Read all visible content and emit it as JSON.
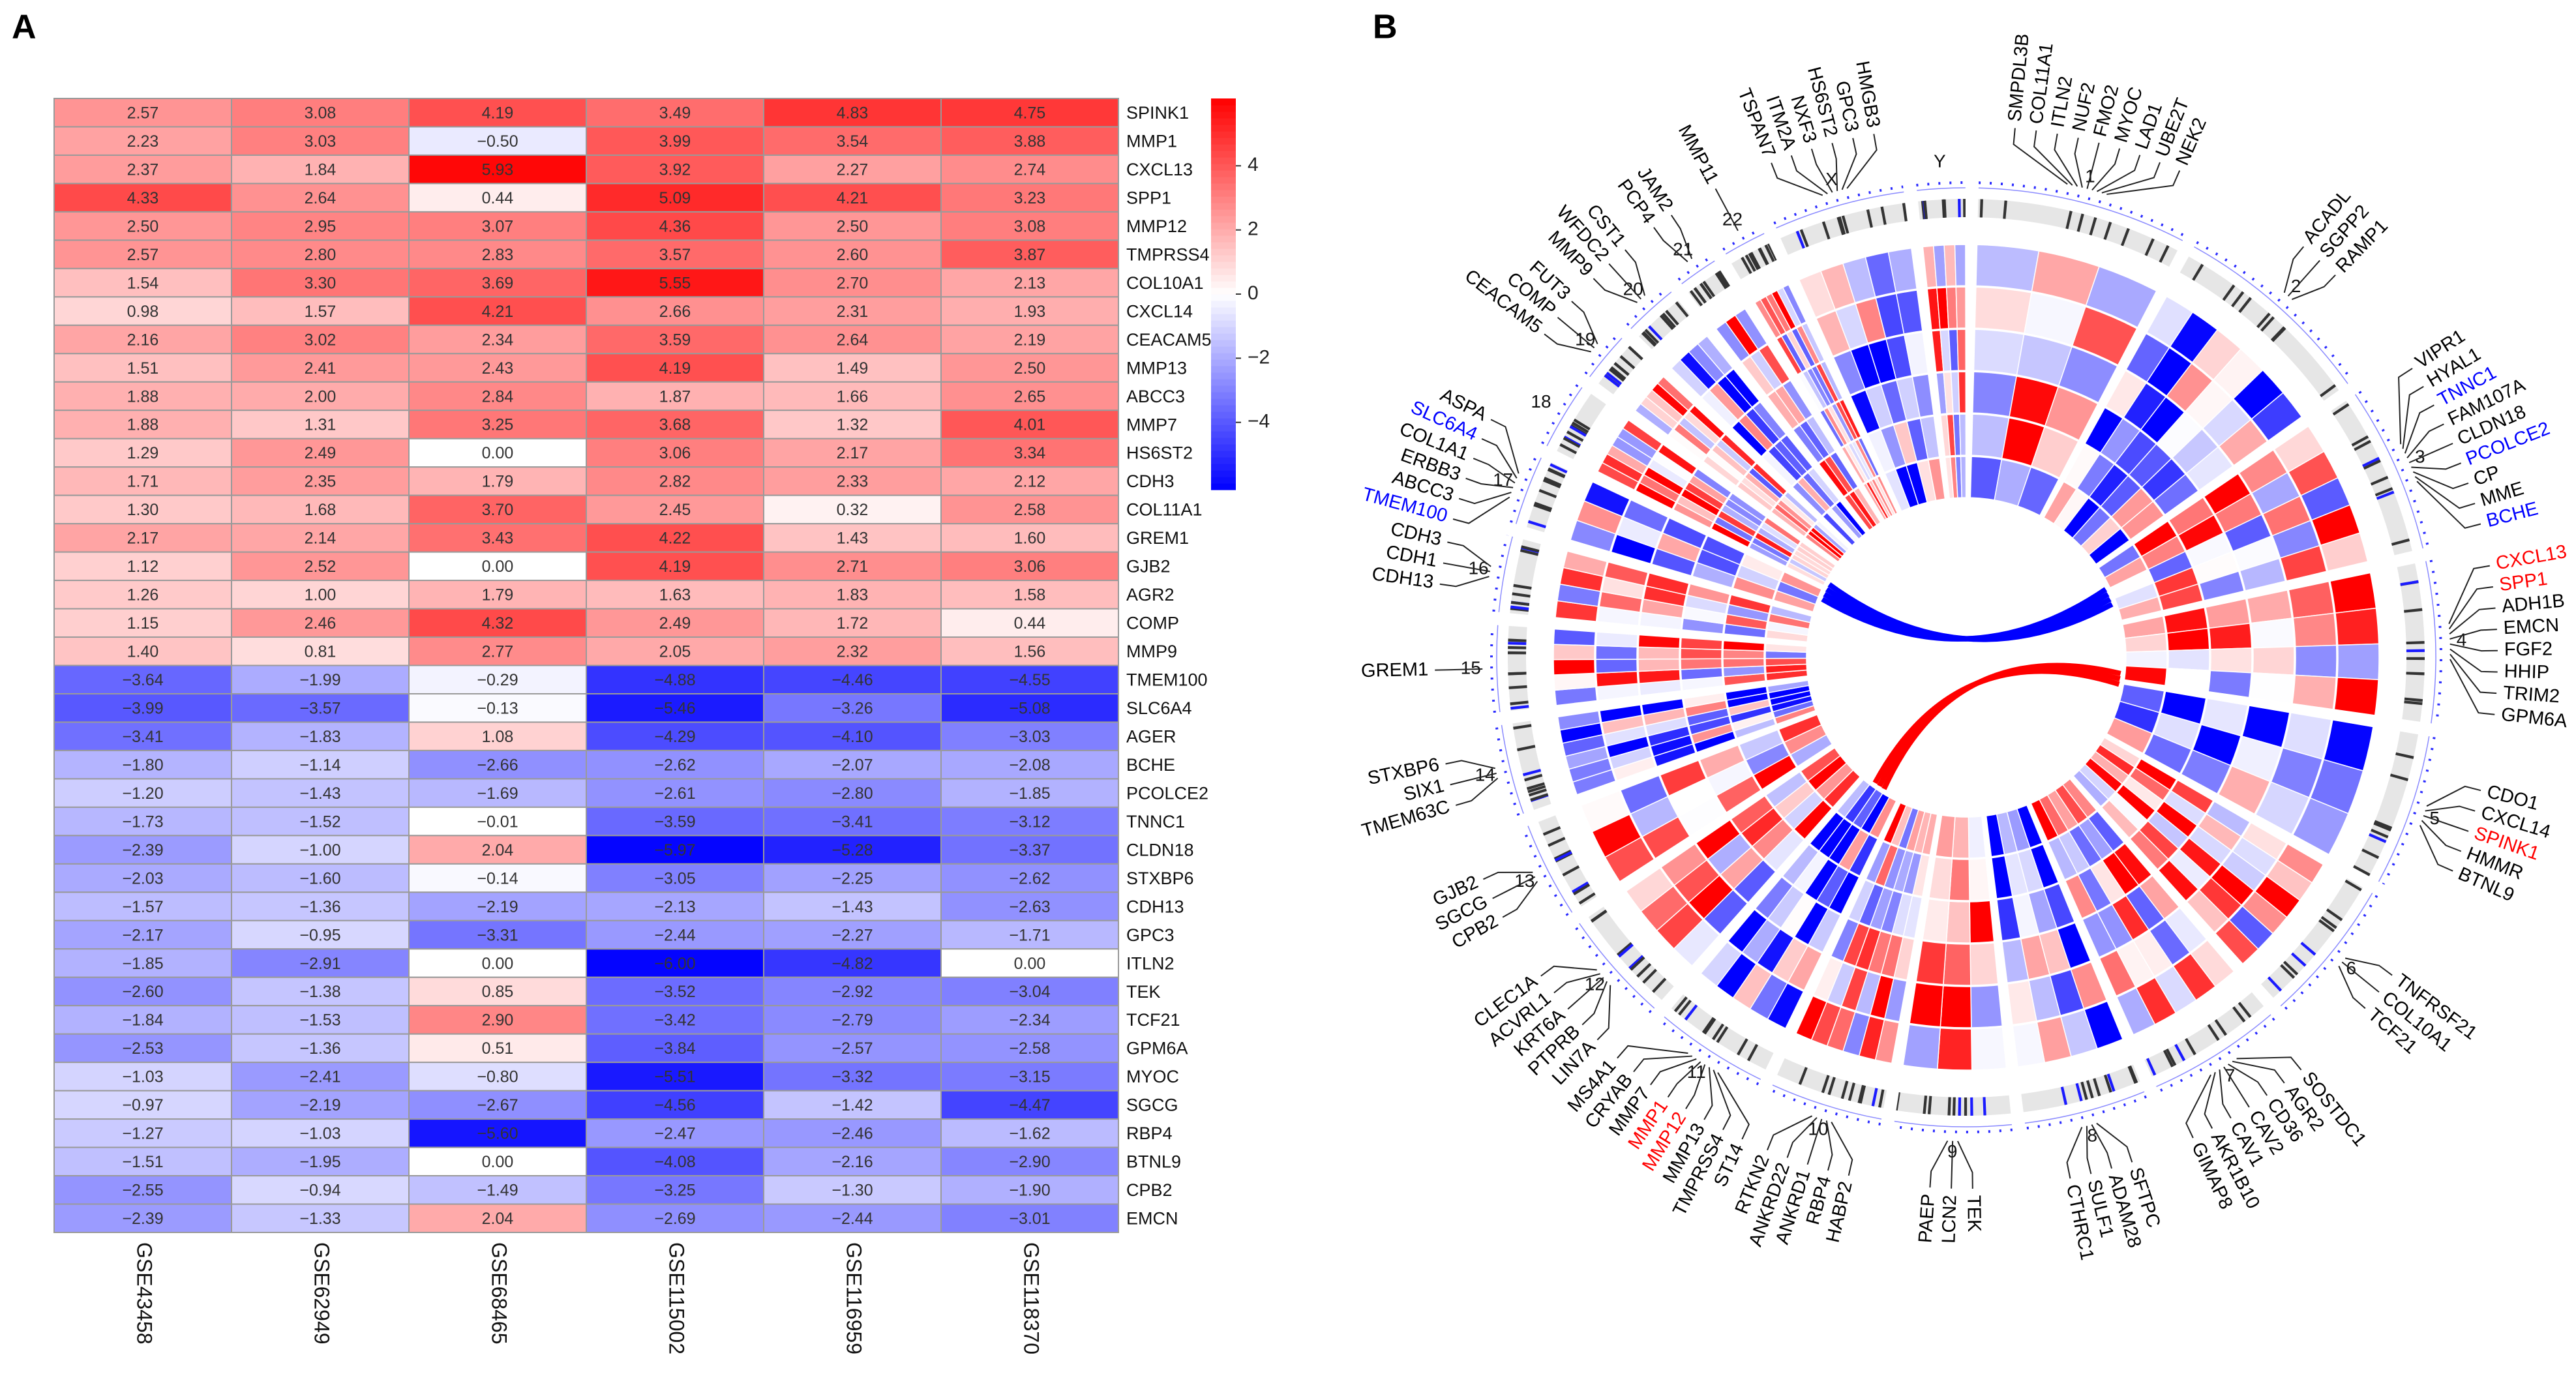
{
  "chart_data": [
    {
      "type": "heatmap",
      "panel": "A",
      "columns": [
        "GSE43458",
        "GSE62949",
        "GSE68465",
        "GSE115002",
        "GSE116959",
        "GSE118370"
      ],
      "rows": [
        "SPINK1",
        "MMP1",
        "CXCL13",
        "SPP1",
        "MMP12",
        "TMPRSS4",
        "COL10A1",
        "CXCL14",
        "CEACAM5",
        "MMP13",
        "ABCC3",
        "MMP7",
        "HS6ST2",
        "CDH3",
        "COL11A1",
        "GREM1",
        "GJB2",
        "AGR2",
        "COMP",
        "MMP9",
        "TMEM100",
        "SLC6A4",
        "AGER",
        "BCHE",
        "PCOLCE2",
        "TNNC1",
        "CLDN18",
        "STXBP6",
        "CDH13",
        "GPC3",
        "ITLN2",
        "TEK",
        "TCF21",
        "GPM6A",
        "MYOC",
        "SGCG",
        "RBP4",
        "BTNL9",
        "CPB2",
        "EMCN"
      ],
      "values": [
        [
          2.57,
          3.08,
          4.19,
          3.49,
          4.83,
          4.75
        ],
        [
          2.23,
          3.03,
          -0.5,
          3.99,
          3.54,
          3.88
        ],
        [
          2.37,
          1.84,
          5.93,
          3.92,
          2.27,
          2.74
        ],
        [
          4.33,
          2.64,
          0.44,
          5.09,
          4.21,
          3.23
        ],
        [
          2.5,
          2.95,
          3.07,
          4.36,
          2.5,
          3.08
        ],
        [
          2.57,
          2.8,
          2.83,
          3.57,
          2.6,
          3.87
        ],
        [
          1.54,
          3.3,
          3.69,
          5.55,
          2.7,
          2.13
        ],
        [
          0.98,
          1.57,
          4.21,
          2.66,
          2.31,
          1.93
        ],
        [
          2.16,
          3.02,
          2.34,
          3.59,
          2.64,
          2.19
        ],
        [
          1.51,
          2.41,
          2.43,
          4.19,
          1.49,
          2.5
        ],
        [
          1.88,
          2,
          2.84,
          1.87,
          1.66,
          2.65
        ],
        [
          1.88,
          1.31,
          3.25,
          3.68,
          1.32,
          4.01
        ],
        [
          1.29,
          2.49,
          0,
          3.06,
          2.17,
          3.34
        ],
        [
          1.71,
          2.35,
          1.79,
          2.82,
          2.33,
          2.12
        ],
        [
          1.3,
          1.68,
          3.7,
          2.45,
          0.32,
          2.58
        ],
        [
          2.17,
          2.14,
          3.43,
          4.22,
          1.43,
          1.6
        ],
        [
          1.12,
          2.52,
          0,
          4.19,
          2.71,
          3.06
        ],
        [
          1.26,
          1,
          1.79,
          1.63,
          1.83,
          1.58
        ],
        [
          1.15,
          2.46,
          4.32,
          2.49,
          1.72,
          0.44
        ],
        [
          1.4,
          0.81,
          2.77,
          2.05,
          2.32,
          1.56
        ],
        [
          -3.64,
          -1.99,
          -0.29,
          -4.88,
          -4.46,
          -4.55
        ],
        [
          -3.99,
          -3.57,
          -0.13,
          -5.46,
          -3.26,
          -5.08
        ],
        [
          -3.41,
          -1.83,
          1.08,
          -4.29,
          -4.1,
          -3.03
        ],
        [
          -1.8,
          -1.14,
          -2.66,
          -2.62,
          -2.07,
          -2.08
        ],
        [
          -1.2,
          -1.43,
          -1.69,
          -2.61,
          -2.8,
          -1.85
        ],
        [
          -1.73,
          -1.52,
          -0.01,
          -3.59,
          -3.41,
          -3.12
        ],
        [
          -2.39,
          -1,
          2.04,
          -5.97,
          -5.28,
          -3.37
        ],
        [
          -2.03,
          -1.6,
          -0.14,
          -3.05,
          -2.25,
          -2.62
        ],
        [
          -1.57,
          -1.36,
          -2.19,
          -2.13,
          -1.43,
          -2.63
        ],
        [
          -2.17,
          -0.95,
          -3.31,
          -2.44,
          -2.27,
          -1.71
        ],
        [
          -1.85,
          -2.91,
          0,
          -6,
          -4.82,
          0
        ],
        [
          -2.6,
          -1.38,
          0.85,
          -3.52,
          -2.92,
          -3.04
        ],
        [
          -1.84,
          -1.53,
          2.9,
          -3.42,
          -2.79,
          -2.34
        ],
        [
          -2.53,
          -1.36,
          0.51,
          -3.84,
          -2.57,
          -2.58
        ],
        [
          -1.03,
          -2.41,
          -0.8,
          -5.51,
          -3.32,
          -3.15
        ],
        [
          -0.97,
          -2.19,
          -2.67,
          -4.56,
          -1.42,
          -4.47
        ],
        [
          -1.27,
          -1.03,
          -5.6,
          -2.47,
          -2.46,
          -1.62
        ],
        [
          -1.51,
          -1.95,
          0,
          -4.08,
          -2.16,
          -2.9
        ],
        [
          -2.55,
          -0.94,
          -1.49,
          -3.25,
          -1.3,
          -1.9
        ],
        [
          -2.39,
          -1.33,
          2.04,
          -2.69,
          -2.44,
          -3.01
        ]
      ],
      "value_labels": [
        [
          "2.57",
          "3.08",
          "4.19",
          "3.49",
          "4.83",
          "4.75"
        ],
        [
          "2.23",
          "3.03",
          "−0.50",
          "3.99",
          "3.54",
          "3.88"
        ],
        [
          "2.37",
          "1.84",
          "5.93",
          "3.92",
          "2.27",
          "2.74"
        ],
        [
          "4.33",
          "2.64",
          "0.44",
          "5.09",
          "4.21",
          "3.23"
        ],
        [
          "2.50",
          "2.95",
          "3.07",
          "4.36",
          "2.50",
          "3.08"
        ],
        [
          "2.57",
          "2.80",
          "2.83",
          "3.57",
          "2.60",
          "3.87"
        ],
        [
          "1.54",
          "3.30",
          "3.69",
          "5.55",
          "2.70",
          "2.13"
        ],
        [
          "0.98",
          "1.57",
          "4.21",
          "2.66",
          "2.31",
          "1.93"
        ],
        [
          "2.16",
          "3.02",
          "2.34",
          "3.59",
          "2.64",
          "2.19"
        ],
        [
          "1.51",
          "2.41",
          "2.43",
          "4.19",
          "1.49",
          "2.50"
        ],
        [
          "1.88",
          "2.00",
          "2.84",
          "1.87",
          "1.66",
          "2.65"
        ],
        [
          "1.88",
          "1.31",
          "3.25",
          "3.68",
          "1.32",
          "4.01"
        ],
        [
          "1.29",
          "2.49",
          "0.00",
          "3.06",
          "2.17",
          "3.34"
        ],
        [
          "1.71",
          "2.35",
          "1.79",
          "2.82",
          "2.33",
          "2.12"
        ],
        [
          "1.30",
          "1.68",
          "3.70",
          "2.45",
          "0.32",
          "2.58"
        ],
        [
          "2.17",
          "2.14",
          "3.43",
          "4.22",
          "1.43",
          "1.60"
        ],
        [
          "1.12",
          "2.52",
          "0.00",
          "4.19",
          "2.71",
          "3.06"
        ],
        [
          "1.26",
          "1.00",
          "1.79",
          "1.63",
          "1.83",
          "1.58"
        ],
        [
          "1.15",
          "2.46",
          "4.32",
          "2.49",
          "1.72",
          "0.44"
        ],
        [
          "1.40",
          "0.81",
          "2.77",
          "2.05",
          "2.32",
          "1.56"
        ],
        [
          "−3.64",
          "−1.99",
          "−0.29",
          "−4.88",
          "−4.46",
          "−4.55"
        ],
        [
          "−3.99",
          "−3.57",
          "−0.13",
          "−5.46",
          "−3.26",
          "−5.08"
        ],
        [
          "−3.41",
          "−1.83",
          "1.08",
          "−4.29",
          "−4.10",
          "−3.03"
        ],
        [
          "−1.80",
          "−1.14",
          "−2.66",
          "−2.62",
          "−2.07",
          "−2.08"
        ],
        [
          "−1.20",
          "−1.43",
          "−1.69",
          "−2.61",
          "−2.80",
          "−1.85"
        ],
        [
          "−1.73",
          "−1.52",
          "−0.01",
          "−3.59",
          "−3.41",
          "−3.12"
        ],
        [
          "−2.39",
          "−1.00",
          "2.04",
          "−5.97",
          "−5.28",
          "−3.37"
        ],
        [
          "−2.03",
          "−1.60",
          "−0.14",
          "−3.05",
          "−2.25",
          "−2.62"
        ],
        [
          "−1.57",
          "−1.36",
          "−2.19",
          "−2.13",
          "−1.43",
          "−2.63"
        ],
        [
          "−2.17",
          "−0.95",
          "−3.31",
          "−2.44",
          "−2.27",
          "−1.71"
        ],
        [
          "−1.85",
          "−2.91",
          "0.00",
          "−6.00",
          "−4.82",
          "0.00"
        ],
        [
          "−2.60",
          "−1.38",
          "0.85",
          "−3.52",
          "−2.92",
          "−3.04"
        ],
        [
          "−1.84",
          "−1.53",
          "2.90",
          "−3.42",
          "−2.79",
          "−2.34"
        ],
        [
          "−2.53",
          "−1.36",
          "0.51",
          "−3.84",
          "−2.57",
          "−2.58"
        ],
        [
          "−1.03",
          "−2.41",
          "−0.80",
          "−5.51",
          "−3.32",
          "−3.15"
        ],
        [
          "−0.97",
          "−2.19",
          "−2.67",
          "−4.56",
          "−1.42",
          "−4.47"
        ],
        [
          "−1.27",
          "−1.03",
          "−5.60",
          "−2.47",
          "−2.46",
          "−1.62"
        ],
        [
          "−1.51",
          "−1.95",
          "0.00",
          "−4.08",
          "−2.16",
          "−2.90"
        ],
        [
          "−2.55",
          "−0.94",
          "−1.49",
          "−3.25",
          "−1.30",
          "−1.90"
        ],
        [
          "−2.39",
          "−1.33",
          "2.04",
          "−2.69",
          "−2.44",
          "−3.01"
        ]
      ],
      "zlim": [
        -6.1,
        6.1
      ],
      "zticks": [
        {
          "value": -4,
          "label": "−4"
        },
        {
          "value": -2,
          "label": "−2"
        },
        0,
        2,
        4
      ],
      "low_color": "#0000ff",
      "mid_color": "#ffffff",
      "high_color": "#ff0000"
    },
    {
      "type": "circos",
      "panel": "B",
      "chromosomes": [
        "1",
        "2",
        "3",
        "4",
        "5",
        "6",
        "7",
        "8",
        "9",
        "10",
        "11",
        "12",
        "13",
        "14",
        "15",
        "16",
        "17",
        "18",
        "19",
        "20",
        "21",
        "22",
        "X",
        "Y"
      ],
      "gene_groups": [
        {
          "chromosome": "1",
          "labels": [
            "SMPDL3B",
            "COL11A1",
            "ITLN2",
            "NUF2",
            "FMO2",
            "MYOC",
            "LAD1",
            "UBE2T",
            "NEK2"
          ]
        },
        {
          "chromosome": "2",
          "labels": [
            "ACADL",
            "SGPP2",
            "RAMP1"
          ]
        },
        {
          "chromosome": "3",
          "labels": [
            "VIPR1",
            "HYAL1",
            "TNNC1",
            "FAM107A",
            "CLDN18",
            "PCOLCE2",
            "CP",
            "MME",
            "BCHE"
          ]
        },
        {
          "chromosome": "4",
          "labels": [
            "CXCL13",
            "SPP1",
            "ADH1B",
            "EMCN",
            "FGF2",
            "HHIP",
            "TRIM2",
            "GPM6A"
          ]
        },
        {
          "chromosome": "5",
          "labels": [
            "CDO1",
            "CXCL14",
            "SPINK1",
            "HMMR",
            "BTNL9"
          ]
        },
        {
          "chromosome": "6",
          "labels": [
            "TNFRSF21",
            "COL10A1",
            "TCF21"
          ]
        },
        {
          "chromosome": "7",
          "labels": [
            "SOSTDC1",
            "AGR2",
            "CD36",
            "CAV2",
            "CAV1",
            "AKR1B10",
            "GIMAP8"
          ]
        },
        {
          "chromosome": "8",
          "labels": [
            "SFTPC",
            "ADAM28",
            "SULF1",
            "CTHRC1"
          ]
        },
        {
          "chromosome": "9",
          "labels": [
            "TEK",
            "LCN2",
            "PAEP"
          ]
        },
        {
          "chromosome": "10",
          "labels": [
            "HABP2",
            "RBP4",
            "ANKRD1",
            "ANKRD22",
            "RTKN2"
          ]
        },
        {
          "chromosome": "11",
          "labels": [
            "ST14",
            "TMPRSS4",
            "MMP13",
            "MMP12",
            "MMP1",
            "MMP7",
            "CRYAB",
            "MS4A1"
          ]
        },
        {
          "chromosome": "12",
          "labels": [
            "LIN7A",
            "PTPRB",
            "KRT6A",
            "ACVRL1",
            "CLEC1A"
          ]
        },
        {
          "chromosome": "13",
          "labels": [
            "CPB2",
            "SGCG",
            "GJB2"
          ]
        },
        {
          "chromosome": "14",
          "labels": [
            "TMEM63C",
            "SIX1",
            "STXBP6"
          ]
        },
        {
          "chromosome": "15",
          "labels": [
            "GREM1"
          ]
        },
        {
          "chromosome": "16",
          "labels": [
            "CDH13",
            "CDH1",
            "CDH3"
          ]
        },
        {
          "chromosome": "17",
          "labels": [
            "TMEM100",
            "ABCC3",
            "ERBB3",
            "COL1A1",
            "SLC6A4",
            "ASPA"
          ]
        },
        {
          "chromosome": "19",
          "labels": [
            "CEACAM5",
            "COMP",
            "FUT3"
          ]
        },
        {
          "chromosome": "20",
          "labels": [
            "MMP9",
            "WFDC2",
            "CST1"
          ]
        },
        {
          "chromosome": "21",
          "labels": [
            "PCP4",
            "JAM2"
          ]
        },
        {
          "chromosome": "22",
          "labels": [
            "MMP11"
          ]
        },
        {
          "chromosome": "X",
          "labels": [
            "TSPAN7",
            "ITM2A",
            "NXF3",
            "HS6ST2",
            "GPC3",
            "HMGB3"
          ]
        }
      ],
      "up_genes": [
        "CXCL13",
        "SPP1",
        "SPINK1",
        "MMP12",
        "MMP1"
      ],
      "down_genes": [
        "TNNC1",
        "PCOLCE2",
        "BCHE",
        "TMEM100",
        "SLC6A4"
      ],
      "up_color": "#ff0000",
      "down_color": "#0000ff",
      "label_color": "#000000"
    }
  ]
}
